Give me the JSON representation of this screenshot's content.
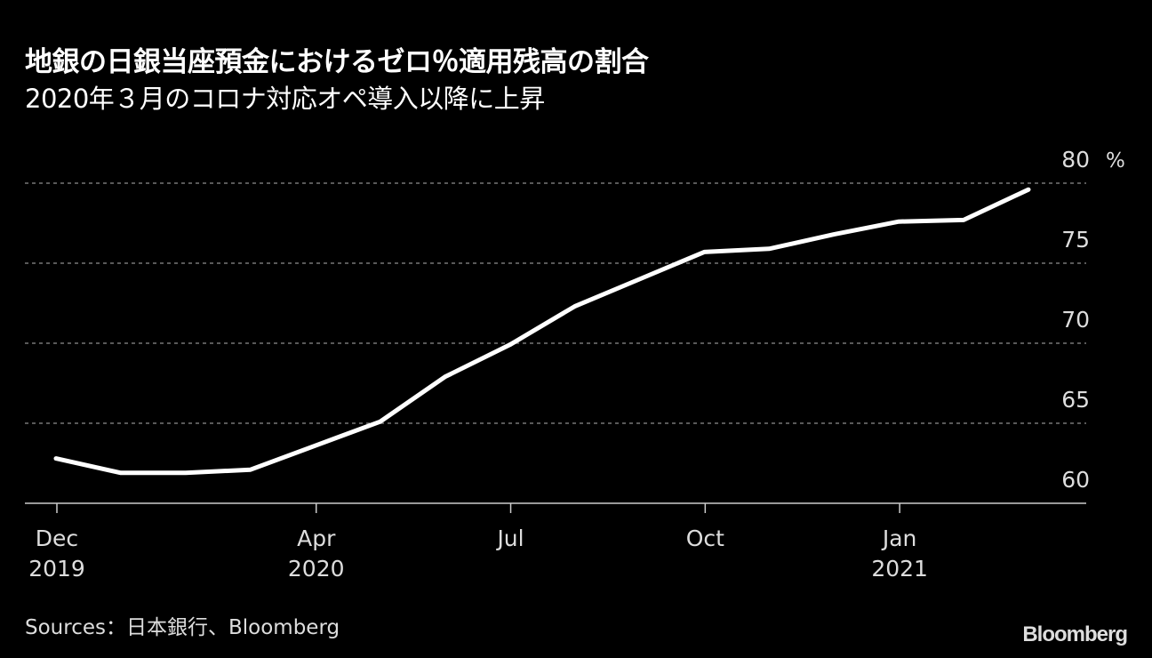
{
  "header": {
    "title": "地銀の日銀当座預金におけるゼロ％適用残高の割合",
    "subtitle": "2020年３月のコロナ対応オペ導入以降に上昇"
  },
  "footer": {
    "source": "Sources：日本銀行、Bloomberg",
    "logo": "Bloomberg"
  },
  "colors": {
    "background": "#000000",
    "line": "#ffffff",
    "grid": "#777777",
    "axis": "#cccccc",
    "tick_text": "#dddddd"
  },
  "chart_data": {
    "type": "line",
    "title": "地銀の日銀当座預金におけるゼロ％適用残高の割合",
    "subtitle": "2020年３月のコロナ対応オペ導入以降に上昇",
    "xlabel": "",
    "ylabel": "%",
    "ylim": [
      60,
      80
    ],
    "yticks": [
      60,
      65,
      70,
      75,
      80
    ],
    "y_unit": "%",
    "grid": "horizontal dotted",
    "legend": "none",
    "x_tick_labels": [
      {
        "label": "Dec",
        "sub": "2019"
      },
      {
        "label": "Apr",
        "sub": "2020"
      },
      {
        "label": "Jul",
        "sub": ""
      },
      {
        "label": "Oct",
        "sub": ""
      },
      {
        "label": "Jan",
        "sub": "2021"
      }
    ],
    "x": [
      "2019-12",
      "2020-01",
      "2020-02",
      "2020-03",
      "2020-04",
      "2020-05",
      "2020-06",
      "2020-07",
      "2020-08",
      "2020-09",
      "2020-10",
      "2020-11",
      "2020-12",
      "2021-01",
      "2021-02",
      "2021-03"
    ],
    "series": [
      {
        "name": "ゼロ％適用残高の割合",
        "values": [
          62.8,
          61.9,
          61.9,
          62.1,
          63.6,
          65.1,
          67.9,
          69.9,
          72.3,
          74.0,
          75.7,
          75.9,
          76.8,
          77.6,
          77.7,
          79.6
        ]
      }
    ],
    "source": "Sources：日本銀行、Bloomberg"
  }
}
